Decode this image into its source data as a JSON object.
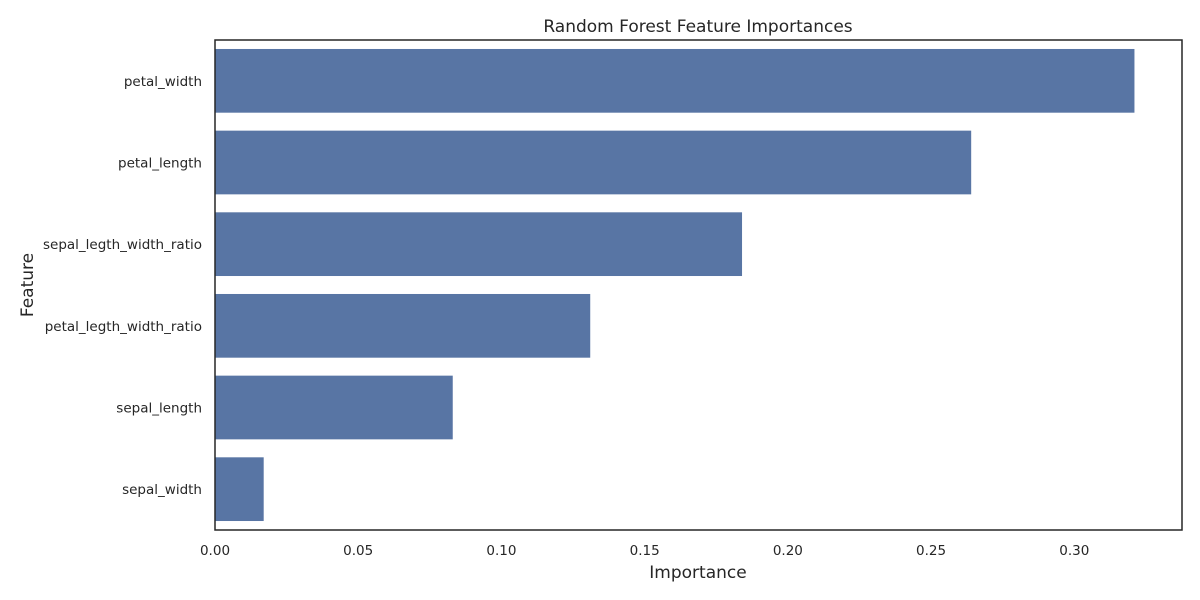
{
  "chart_data": {
    "type": "bar",
    "orientation": "horizontal",
    "title": "Random Forest Feature Importances",
    "xlabel": "Importance",
    "ylabel": "Feature",
    "categories": [
      "petal_width",
      "petal_length",
      "sepal_legth_width_ratio",
      "petal_legth_width_ratio",
      "sepal_length",
      "sepal_width"
    ],
    "values": [
      0.321,
      0.264,
      0.184,
      0.131,
      0.083,
      0.017
    ],
    "xlim": [
      0,
      0.3376
    ],
    "xticks": [
      0.0,
      0.05,
      0.1,
      0.15,
      0.2,
      0.25,
      0.3
    ],
    "xtick_labels": [
      "0.00",
      "0.05",
      "0.10",
      "0.15",
      "0.20",
      "0.25",
      "0.30"
    ],
    "grid": false,
    "bar_color": "#5875a4",
    "frame_color": "#262626"
  }
}
